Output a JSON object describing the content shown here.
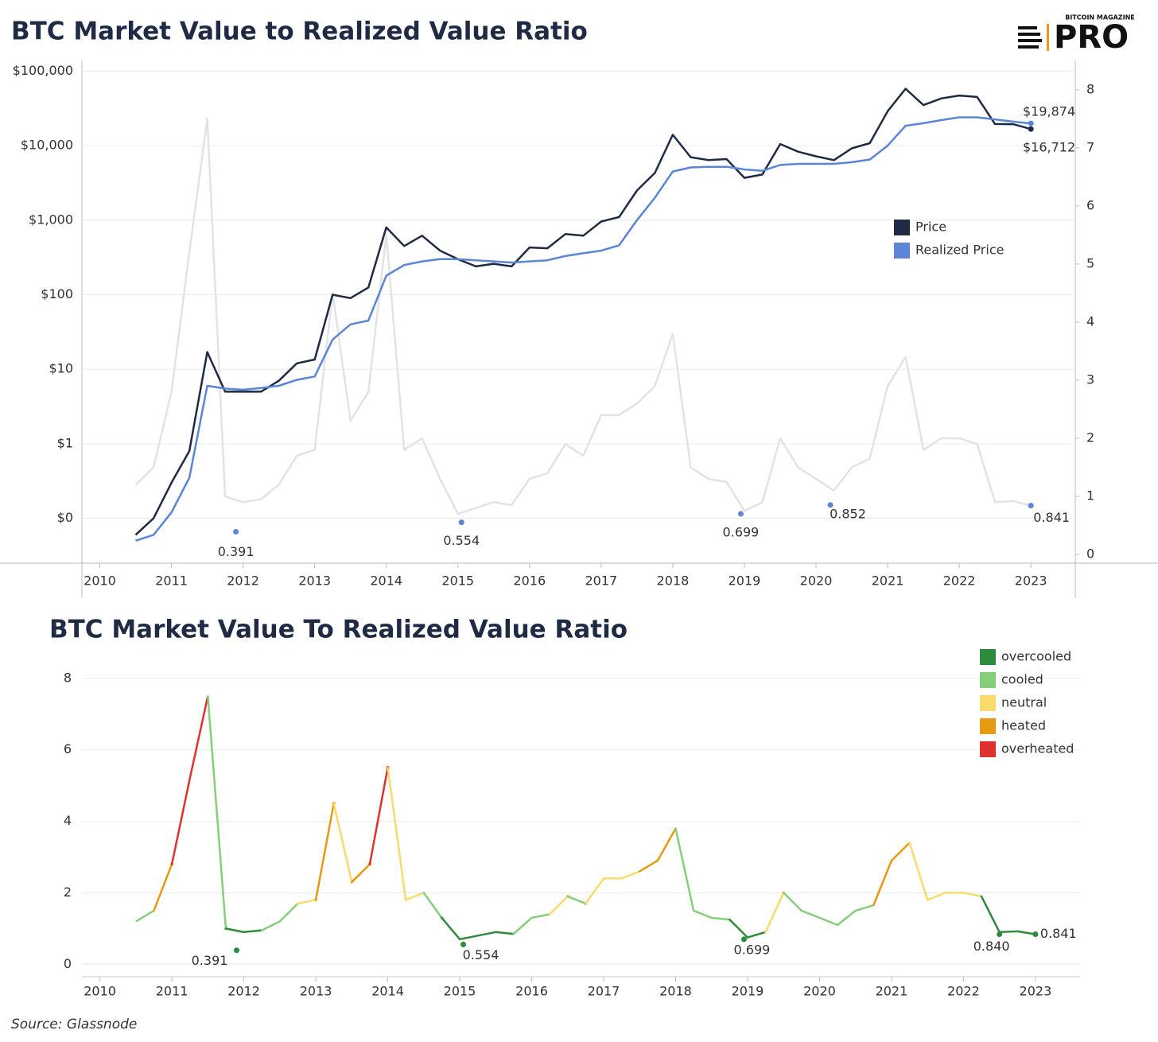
{
  "header": {
    "title": "BTC Market Value to Realized Value Ratio",
    "logo_small": "BITCOIN MAGAZINE",
    "logo_big": "PRO"
  },
  "source": "Source: Glassnode",
  "chart_data": [
    {
      "type": "line",
      "yscale": "log",
      "grid": true,
      "legend": "right",
      "x": [
        2010.5,
        2010.75,
        2011,
        2011.25,
        2011.5,
        2011.75,
        2012,
        2012.25,
        2012.5,
        2012.75,
        2013,
        2013.25,
        2013.5,
        2013.75,
        2014,
        2014.25,
        2014.5,
        2014.75,
        2015,
        2015.25,
        2015.5,
        2015.75,
        2016,
        2016.25,
        2016.5,
        2016.75,
        2017,
        2017.25,
        2017.5,
        2017.75,
        2018,
        2018.25,
        2018.5,
        2018.75,
        2019,
        2019.25,
        2019.5,
        2019.75,
        2020,
        2020.25,
        2020.5,
        2020.75,
        2021,
        2021.25,
        2021.5,
        2021.75,
        2022,
        2022.25,
        2022.5,
        2022.75,
        2023
      ],
      "xlim": [
        2009.75,
        2023.62
      ],
      "xticks": [
        2010,
        2011,
        2012,
        2013,
        2014,
        2015,
        2016,
        2017,
        2018,
        2019,
        2020,
        2021,
        2022,
        2023
      ],
      "ylim": [
        0.025,
        126000
      ],
      "yticks": [
        {
          "value": 0.1,
          "label": "$0"
        },
        {
          "value": 1,
          "label": "$1"
        },
        {
          "value": 10,
          "label": "$10"
        },
        {
          "value": 100,
          "label": "$100"
        },
        {
          "value": 1000,
          "label": "$1,000"
        },
        {
          "value": 10000,
          "label": "$10,000"
        },
        {
          "value": 100000,
          "label": "$100,000"
        }
      ],
      "y2lim": [
        -0.15,
        8.45
      ],
      "y2ticks": [
        0,
        1,
        2,
        3,
        4,
        5,
        6,
        7,
        8
      ],
      "series": [
        {
          "values": [
            1.2,
            1.5,
            2.8,
            5.2,
            7.5,
            1.0,
            0.9,
            0.95,
            1.2,
            1.7,
            1.8,
            4.5,
            2.3,
            2.8,
            5.5,
            1.8,
            2.0,
            1.3,
            0.7,
            0.8,
            0.9,
            0.85,
            1.3,
            1.4,
            1.9,
            1.7,
            2.4,
            2.4,
            2.6,
            2.9,
            3.8,
            1.5,
            1.3,
            1.25,
            0.75,
            0.9,
            2.0,
            1.5,
            1.3,
            1.1,
            1.5,
            1.65,
            2.9,
            3.4,
            1.8,
            2.0,
            2.0,
            1.9,
            0.9,
            0.92,
            0.841
          ],
          "color": "#e3e3e3",
          "axis": "y2"
        },
        {
          "name": "Price",
          "color": "#1f2a44",
          "values": [
            0.06,
            0.1,
            0.3,
            0.8,
            17,
            5,
            5,
            5,
            7,
            12,
            13.5,
            100,
            90,
            125,
            800,
            450,
            620,
            390,
            300,
            240,
            260,
            240,
            430,
            420,
            650,
            620,
            960,
            1100,
            2500,
            4300,
            14000,
            7000,
            6400,
            6600,
            3700,
            4100,
            10500,
            8300,
            7200,
            6400,
            9200,
            10800,
            29000,
            58000,
            35000,
            43000,
            47000,
            45000,
            19500,
            19400,
            16712
          ]
        },
        {
          "name": "Realized Price",
          "color": "#5b85d6",
          "values": [
            0.05,
            0.06,
            0.12,
            0.35,
            6,
            5.5,
            5.3,
            5.6,
            6,
            7.2,
            8,
            25,
            40,
            45,
            180,
            250,
            280,
            300,
            300,
            290,
            280,
            270,
            280,
            290,
            330,
            360,
            390,
            460,
            1000,
            2000,
            4500,
            5100,
            5200,
            5200,
            4800,
            4600,
            5500,
            5700,
            5700,
            5700,
            6000,
            6500,
            10000,
            18500,
            20000,
            22000,
            24000,
            24000,
            22500,
            21000,
            19874
          ]
        }
      ],
      "annotations": [
        {
          "x": 2011.9,
          "value": 0.391,
          "label": "0.391",
          "axis": "y2",
          "color": "#5b85d6"
        },
        {
          "x": 2015.05,
          "value": 0.554,
          "label": "0.554",
          "axis": "y2",
          "color": "#5b85d6"
        },
        {
          "x": 2018.95,
          "value": 0.699,
          "label": "0.699",
          "axis": "y2",
          "color": "#5b85d6"
        },
        {
          "x": 2020.2,
          "value": 0.852,
          "label": "0.852",
          "axis": "y2",
          "color": "#5b85d6"
        },
        {
          "x": 2023,
          "value": 0.841,
          "label": "0.841",
          "axis": "y2",
          "color": "#5b85d6"
        },
        {
          "x": 2023,
          "value": 19874,
          "label": "$19,874",
          "color": "#5b85d6"
        },
        {
          "x": 2023,
          "value": 16712,
          "label": "$16,712",
          "color": "#1f2a44"
        }
      ]
    },
    {
      "type": "line",
      "title": "BTC Market Value To Realized Value Ratio",
      "grid": true,
      "legend": "top-right",
      "x": [
        2010.5,
        2010.75,
        2011,
        2011.25,
        2011.5,
        2011.75,
        2012,
        2012.25,
        2012.5,
        2012.75,
        2013,
        2013.25,
        2013.5,
        2013.75,
        2014,
        2014.25,
        2014.5,
        2014.75,
        2015,
        2015.25,
        2015.5,
        2015.75,
        2016,
        2016.25,
        2016.5,
        2016.75,
        2017,
        2017.25,
        2017.5,
        2017.75,
        2018,
        2018.25,
        2018.5,
        2018.75,
        2019,
        2019.25,
        2019.5,
        2019.75,
        2020,
        2020.25,
        2020.5,
        2020.75,
        2021,
        2021.25,
        2021.5,
        2021.75,
        2022,
        2022.25,
        2022.5,
        2022.75,
        2023
      ],
      "xlim": [
        2009.75,
        2023.62
      ],
      "xticks": [
        2010,
        2011,
        2012,
        2013,
        2014,
        2015,
        2016,
        2017,
        2018,
        2019,
        2020,
        2021,
        2022,
        2023
      ],
      "ylim": [
        -0.35,
        8.33
      ],
      "yticks": [
        0,
        2,
        4,
        6,
        8
      ],
      "series": [
        {
          "name": "overcooled",
          "color": "#2e8b3e",
          "values": [
            null,
            null,
            null,
            null,
            null,
            null,
            0.9,
            0.95,
            null,
            null,
            null,
            null,
            null,
            null,
            null,
            null,
            null,
            null,
            0.7,
            0.8,
            0.9,
            0.85,
            null,
            null,
            null,
            null,
            null,
            null,
            null,
            null,
            null,
            null,
            null,
            null,
            0.75,
            0.9,
            null,
            null,
            null,
            null,
            null,
            null,
            null,
            null,
            null,
            null,
            null,
            null,
            0.9,
            0.92,
            0.841
          ]
        },
        {
          "name": "cooled",
          "color": "#86cf7a",
          "values": [
            1.2,
            1.5,
            null,
            null,
            null,
            1.0,
            null,
            null,
            1.2,
            1.7,
            null,
            null,
            null,
            null,
            null,
            null,
            null,
            1.3,
            null,
            null,
            null,
            null,
            1.3,
            1.4,
            null,
            1.7,
            null,
            null,
            null,
            null,
            null,
            1.5,
            1.3,
            1.25,
            null,
            null,
            null,
            1.5,
            1.3,
            1.1,
            1.5,
            1.65,
            null,
            null,
            null,
            null,
            null,
            null,
            null,
            null,
            null
          ]
        },
        {
          "name": "neutral",
          "color": "#fbd96a",
          "values": [
            null,
            null,
            null,
            null,
            null,
            null,
            null,
            null,
            null,
            null,
            1.8,
            null,
            2.3,
            null,
            null,
            1.8,
            2.0,
            null,
            null,
            null,
            null,
            null,
            null,
            null,
            1.9,
            null,
            2.4,
            2.4,
            2.6,
            null,
            null,
            null,
            null,
            null,
            null,
            null,
            2.0,
            null,
            null,
            null,
            null,
            null,
            null,
            null,
            1.8,
            2.0,
            2.0,
            1.9,
            null,
            null,
            null
          ]
        },
        {
          "name": "heated",
          "color": "#e59a12",
          "values": [
            null,
            null,
            2.8,
            null,
            null,
            null,
            null,
            null,
            null,
            null,
            null,
            4.5,
            null,
            2.8,
            null,
            null,
            null,
            null,
            null,
            null,
            null,
            null,
            null,
            null,
            null,
            null,
            null,
            null,
            null,
            2.9,
            3.8,
            null,
            null,
            null,
            null,
            null,
            null,
            null,
            null,
            null,
            null,
            null,
            2.9,
            3.4,
            null,
            null,
            null,
            null,
            null,
            null,
            null
          ]
        },
        {
          "name": "overheated",
          "color": "#e03030",
          "values": [
            null,
            null,
            null,
            5.2,
            7.5,
            null,
            null,
            null,
            null,
            null,
            null,
            null,
            null,
            null,
            5.5,
            null,
            null,
            null,
            null,
            null,
            null,
            null,
            null,
            null,
            null,
            null,
            null,
            null,
            null,
            null,
            null,
            null,
            null,
            null,
            null,
            null,
            null,
            null,
            null,
            null,
            null,
            null,
            null,
            null,
            null,
            null,
            null,
            null,
            null,
            null,
            null
          ]
        }
      ],
      "annotations": [
        {
          "x": 2011.9,
          "value": 0.391,
          "label": "0.391",
          "color": "#2e8b3e"
        },
        {
          "x": 2015.05,
          "value": 0.554,
          "label": "0.554",
          "color": "#2e8b3e"
        },
        {
          "x": 2018.95,
          "value": 0.699,
          "label": "0.699",
          "color": "#2e8b3e"
        },
        {
          "x": 2022.5,
          "value": 0.84,
          "label": "0.840",
          "color": "#2e8b3e"
        },
        {
          "x": 2023,
          "value": 0.841,
          "label": "0.841",
          "color": "#2e8b3e"
        }
      ]
    }
  ]
}
